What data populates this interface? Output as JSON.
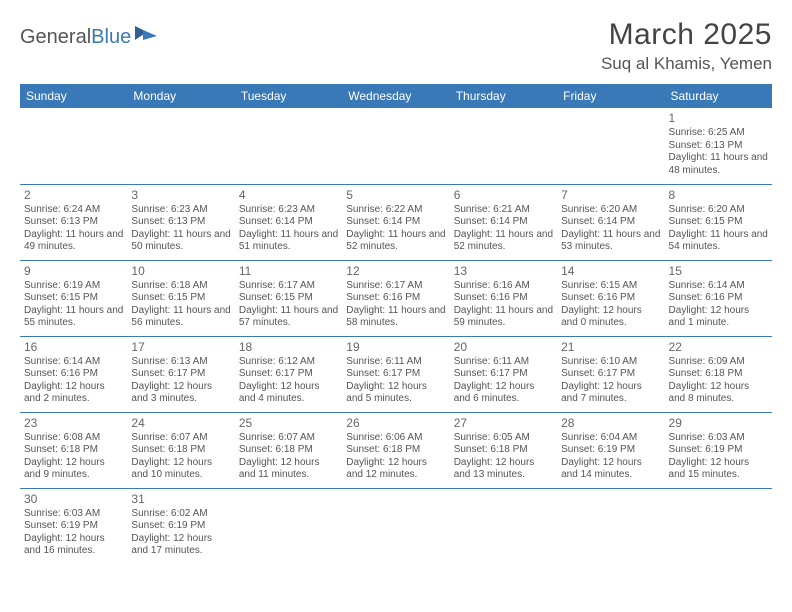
{
  "logo": {
    "text1": "General",
    "text2": "Blue"
  },
  "title": "March 2025",
  "location": "Suq al Khamis, Yemen",
  "colors": {
    "header_bg": "#3a79b7",
    "header_fg": "#ffffff",
    "text": "#555555",
    "border": "#3a79b7"
  },
  "day_names": [
    "Sunday",
    "Monday",
    "Tuesday",
    "Wednesday",
    "Thursday",
    "Friday",
    "Saturday"
  ],
  "weeks": [
    [
      null,
      null,
      null,
      null,
      null,
      null,
      {
        "n": "1",
        "sr": "Sunrise: 6:25 AM",
        "ss": "Sunset: 6:13 PM",
        "dl": "Daylight: 11 hours and 48 minutes."
      }
    ],
    [
      {
        "n": "2",
        "sr": "Sunrise: 6:24 AM",
        "ss": "Sunset: 6:13 PM",
        "dl": "Daylight: 11 hours and 49 minutes."
      },
      {
        "n": "3",
        "sr": "Sunrise: 6:23 AM",
        "ss": "Sunset: 6:13 PM",
        "dl": "Daylight: 11 hours and 50 minutes."
      },
      {
        "n": "4",
        "sr": "Sunrise: 6:23 AM",
        "ss": "Sunset: 6:14 PM",
        "dl": "Daylight: 11 hours and 51 minutes."
      },
      {
        "n": "5",
        "sr": "Sunrise: 6:22 AM",
        "ss": "Sunset: 6:14 PM",
        "dl": "Daylight: 11 hours and 52 minutes."
      },
      {
        "n": "6",
        "sr": "Sunrise: 6:21 AM",
        "ss": "Sunset: 6:14 PM",
        "dl": "Daylight: 11 hours and 52 minutes."
      },
      {
        "n": "7",
        "sr": "Sunrise: 6:20 AM",
        "ss": "Sunset: 6:14 PM",
        "dl": "Daylight: 11 hours and 53 minutes."
      },
      {
        "n": "8",
        "sr": "Sunrise: 6:20 AM",
        "ss": "Sunset: 6:15 PM",
        "dl": "Daylight: 11 hours and 54 minutes."
      }
    ],
    [
      {
        "n": "9",
        "sr": "Sunrise: 6:19 AM",
        "ss": "Sunset: 6:15 PM",
        "dl": "Daylight: 11 hours and 55 minutes."
      },
      {
        "n": "10",
        "sr": "Sunrise: 6:18 AM",
        "ss": "Sunset: 6:15 PM",
        "dl": "Daylight: 11 hours and 56 minutes."
      },
      {
        "n": "11",
        "sr": "Sunrise: 6:17 AM",
        "ss": "Sunset: 6:15 PM",
        "dl": "Daylight: 11 hours and 57 minutes."
      },
      {
        "n": "12",
        "sr": "Sunrise: 6:17 AM",
        "ss": "Sunset: 6:16 PM",
        "dl": "Daylight: 11 hours and 58 minutes."
      },
      {
        "n": "13",
        "sr": "Sunrise: 6:16 AM",
        "ss": "Sunset: 6:16 PM",
        "dl": "Daylight: 11 hours and 59 minutes."
      },
      {
        "n": "14",
        "sr": "Sunrise: 6:15 AM",
        "ss": "Sunset: 6:16 PM",
        "dl": "Daylight: 12 hours and 0 minutes."
      },
      {
        "n": "15",
        "sr": "Sunrise: 6:14 AM",
        "ss": "Sunset: 6:16 PM",
        "dl": "Daylight: 12 hours and 1 minute."
      }
    ],
    [
      {
        "n": "16",
        "sr": "Sunrise: 6:14 AM",
        "ss": "Sunset: 6:16 PM",
        "dl": "Daylight: 12 hours and 2 minutes."
      },
      {
        "n": "17",
        "sr": "Sunrise: 6:13 AM",
        "ss": "Sunset: 6:17 PM",
        "dl": "Daylight: 12 hours and 3 minutes."
      },
      {
        "n": "18",
        "sr": "Sunrise: 6:12 AM",
        "ss": "Sunset: 6:17 PM",
        "dl": "Daylight: 12 hours and 4 minutes."
      },
      {
        "n": "19",
        "sr": "Sunrise: 6:11 AM",
        "ss": "Sunset: 6:17 PM",
        "dl": "Daylight: 12 hours and 5 minutes."
      },
      {
        "n": "20",
        "sr": "Sunrise: 6:11 AM",
        "ss": "Sunset: 6:17 PM",
        "dl": "Daylight: 12 hours and 6 minutes."
      },
      {
        "n": "21",
        "sr": "Sunrise: 6:10 AM",
        "ss": "Sunset: 6:17 PM",
        "dl": "Daylight: 12 hours and 7 minutes."
      },
      {
        "n": "22",
        "sr": "Sunrise: 6:09 AM",
        "ss": "Sunset: 6:18 PM",
        "dl": "Daylight: 12 hours and 8 minutes."
      }
    ],
    [
      {
        "n": "23",
        "sr": "Sunrise: 6:08 AM",
        "ss": "Sunset: 6:18 PM",
        "dl": "Daylight: 12 hours and 9 minutes."
      },
      {
        "n": "24",
        "sr": "Sunrise: 6:07 AM",
        "ss": "Sunset: 6:18 PM",
        "dl": "Daylight: 12 hours and 10 minutes."
      },
      {
        "n": "25",
        "sr": "Sunrise: 6:07 AM",
        "ss": "Sunset: 6:18 PM",
        "dl": "Daylight: 12 hours and 11 minutes."
      },
      {
        "n": "26",
        "sr": "Sunrise: 6:06 AM",
        "ss": "Sunset: 6:18 PM",
        "dl": "Daylight: 12 hours and 12 minutes."
      },
      {
        "n": "27",
        "sr": "Sunrise: 6:05 AM",
        "ss": "Sunset: 6:18 PM",
        "dl": "Daylight: 12 hours and 13 minutes."
      },
      {
        "n": "28",
        "sr": "Sunrise: 6:04 AM",
        "ss": "Sunset: 6:19 PM",
        "dl": "Daylight: 12 hours and 14 minutes."
      },
      {
        "n": "29",
        "sr": "Sunrise: 6:03 AM",
        "ss": "Sunset: 6:19 PM",
        "dl": "Daylight: 12 hours and 15 minutes."
      }
    ],
    [
      {
        "n": "30",
        "sr": "Sunrise: 6:03 AM",
        "ss": "Sunset: 6:19 PM",
        "dl": "Daylight: 12 hours and 16 minutes."
      },
      {
        "n": "31",
        "sr": "Sunrise: 6:02 AM",
        "ss": "Sunset: 6:19 PM",
        "dl": "Daylight: 12 hours and 17 minutes."
      },
      null,
      null,
      null,
      null,
      null
    ]
  ]
}
